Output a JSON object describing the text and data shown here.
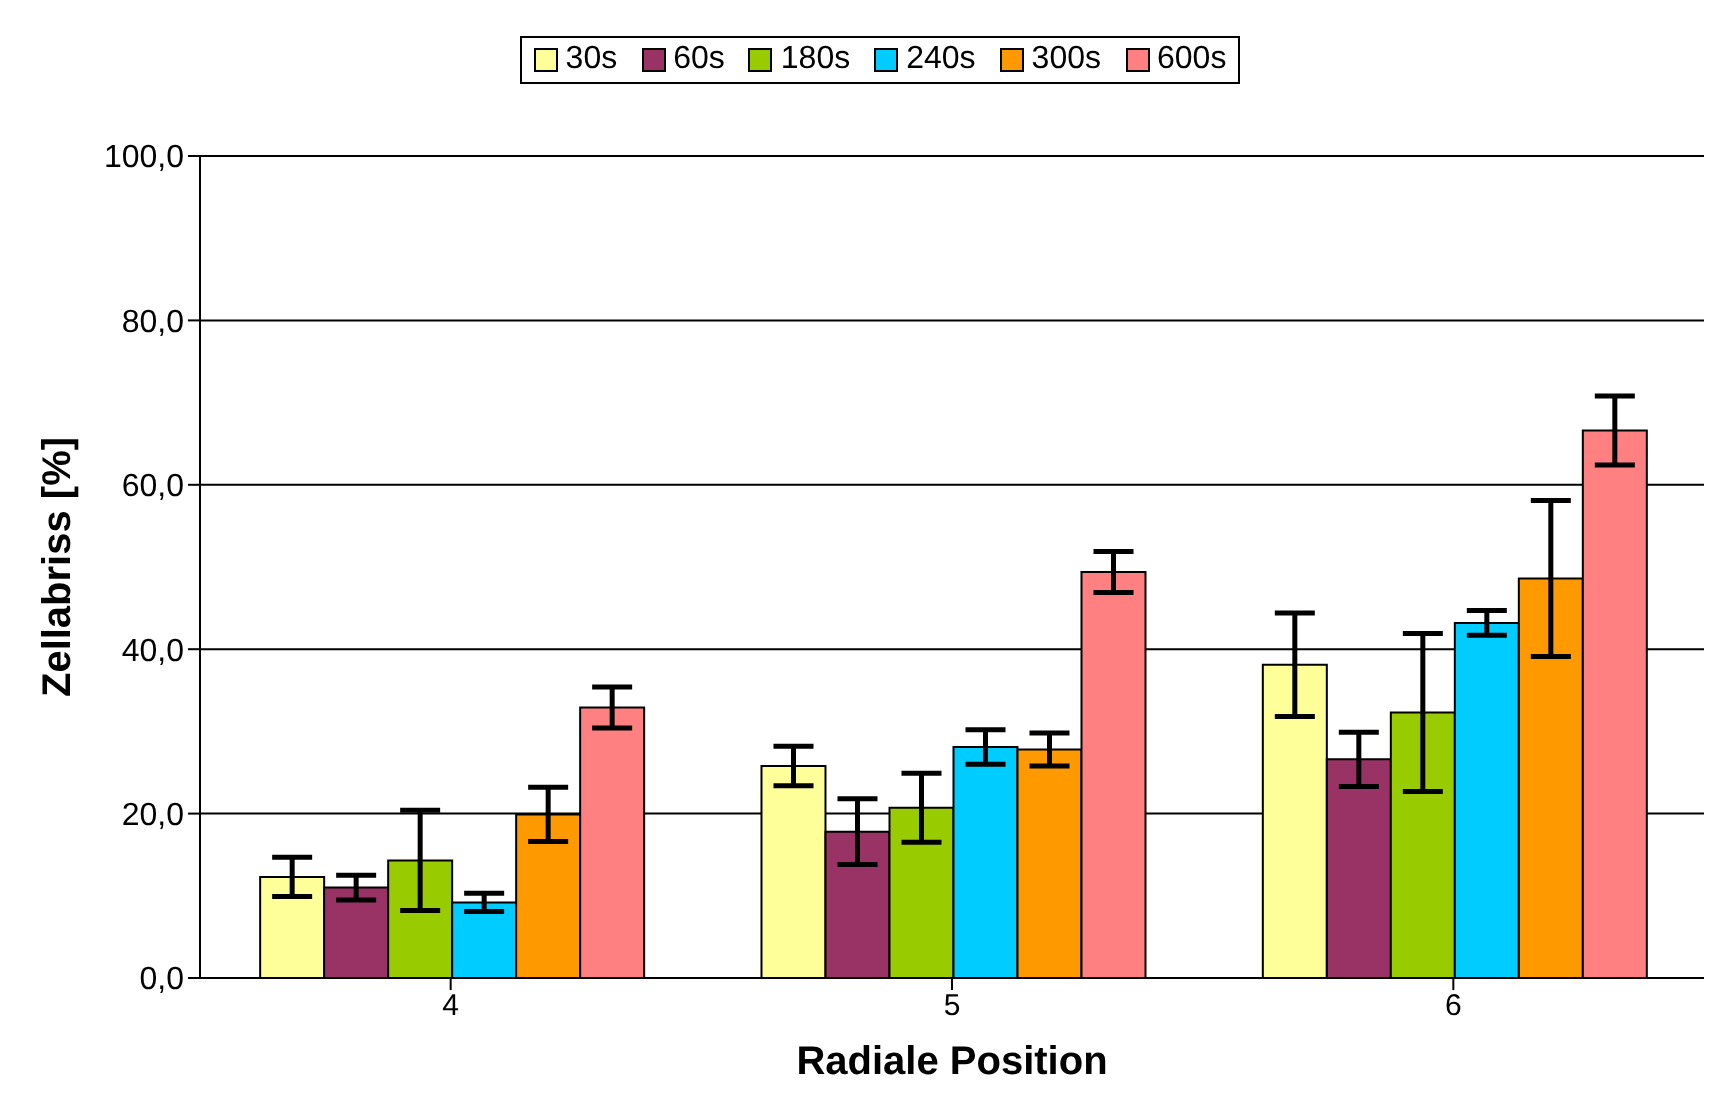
{
  "chart_data": {
    "type": "bar",
    "xlabel": "Radiale Position",
    "ylabel": "Zellabriss [%]",
    "categories": [
      "4",
      "5",
      "6"
    ],
    "series": [
      {
        "name": "30s",
        "color": "#ffff99",
        "values": [
          12.3,
          25.8,
          38.1
        ],
        "errors": [
          2.4,
          2.4,
          6.3
        ]
      },
      {
        "name": "60s",
        "color": "#993366",
        "values": [
          11.0,
          17.8,
          26.6
        ],
        "errors": [
          1.5,
          4.0,
          3.3
        ]
      },
      {
        "name": "180s",
        "color": "#99cc00",
        "values": [
          14.3,
          20.7,
          32.3
        ],
        "errors": [
          6.1,
          4.2,
          9.6
        ]
      },
      {
        "name": "240s",
        "color": "#00ccff",
        "values": [
          9.2,
          28.1,
          43.2
        ],
        "errors": [
          1.1,
          2.1,
          1.5
        ]
      },
      {
        "name": "300s",
        "color": "#ff9900",
        "values": [
          19.9,
          27.8,
          48.6
        ],
        "errors": [
          3.3,
          2.0,
          9.5
        ]
      },
      {
        "name": "600s",
        "color": "#ff8080",
        "values": [
          32.9,
          49.4,
          66.6
        ],
        "errors": [
          2.5,
          2.5,
          4.2
        ]
      }
    ],
    "ylim": [
      0,
      100
    ],
    "yticks": [
      {
        "value": 0,
        "label": "0,0"
      },
      {
        "value": 20,
        "label": "20,0"
      },
      {
        "value": 40,
        "label": "40,0"
      },
      {
        "value": 60,
        "label": "60,0"
      },
      {
        "value": 80,
        "label": "80,0"
      },
      {
        "value": 100,
        "label": "100,0"
      }
    ],
    "grid": "y",
    "legend": "top"
  }
}
